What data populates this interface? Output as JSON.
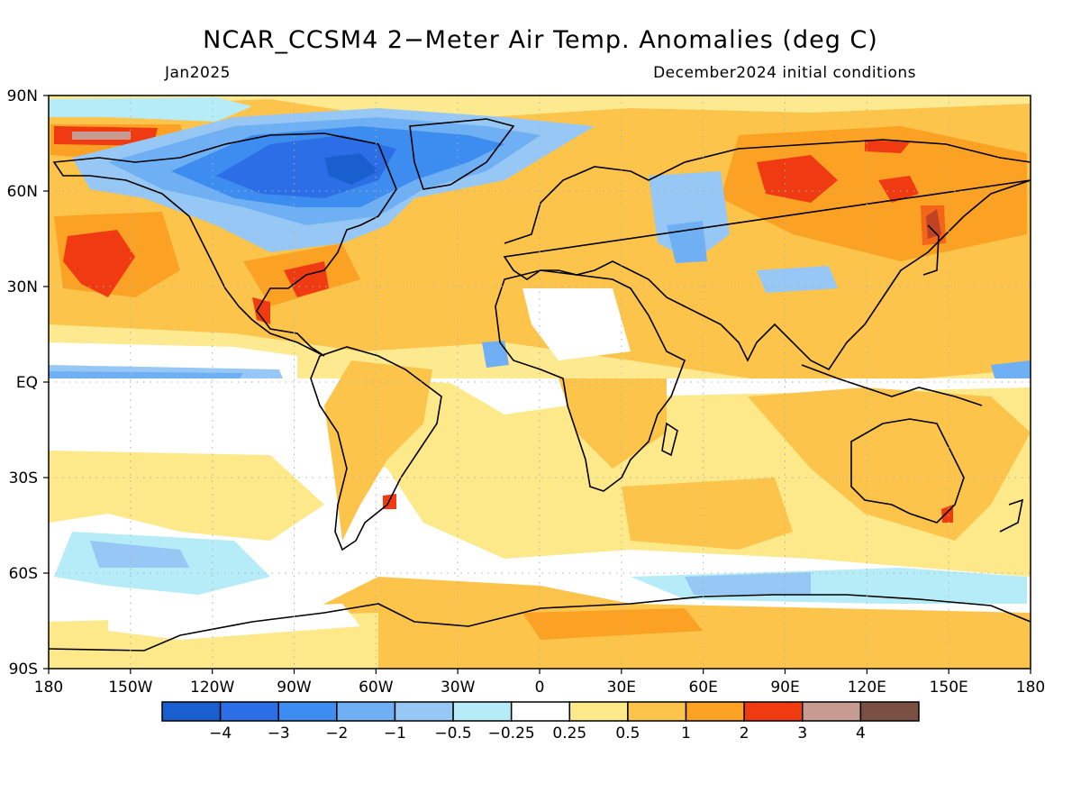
{
  "header": {
    "title": "NCAR_CCSM4 2−Meter Air Temp. Anomalies (deg C)",
    "valid_month": "Jan2025",
    "init_conditions": "December2024 initial conditions"
  },
  "axes": {
    "lat_ticks": [
      "90N",
      "60N",
      "30N",
      "EQ",
      "30S",
      "60S",
      "90S"
    ],
    "lon_ticks": [
      "180",
      "150W",
      "120W",
      "90W",
      "60W",
      "30W",
      "0",
      "30E",
      "60E",
      "90E",
      "120E",
      "150E",
      "180"
    ]
  },
  "colorbar": {
    "labels": [
      "−4",
      "−3",
      "−2",
      "−1",
      "−0.5",
      "−0.25",
      "0.25",
      "0.5",
      "1",
      "2",
      "3",
      "4"
    ],
    "colors": [
      "#1a5fcf",
      "#2b6ee6",
      "#3d8df0",
      "#6fb0f5",
      "#97c8f5",
      "#b6ecf7",
      "#ffffff",
      "#fde88a",
      "#fcc44a",
      "#fba224",
      "#f03a12",
      "#c79a92",
      "#7a5043"
    ]
  },
  "map_colors": {
    "ocean_base": "#ffffff",
    "coastline": "#000000",
    "grid_dot": "#b0b0b0"
  }
}
